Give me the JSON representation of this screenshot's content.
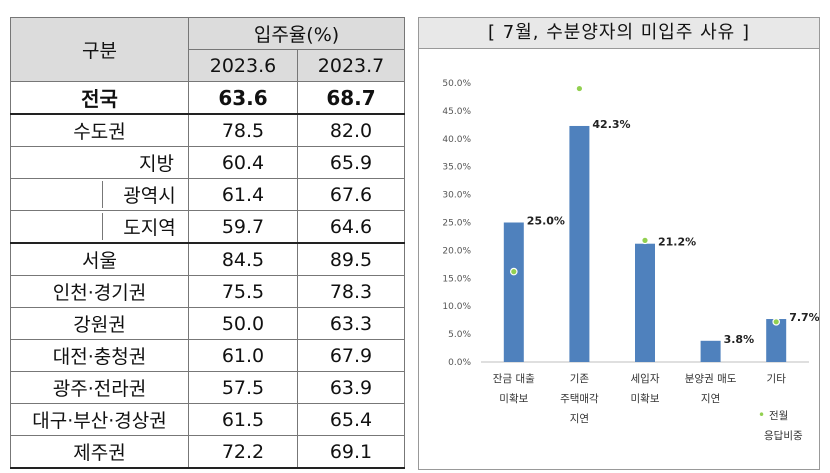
{
  "table": {
    "header": {
      "group_label": "구분",
      "rate_label": "입주율(%)",
      "col1": "2023.6",
      "col2": "2023.7"
    },
    "rows": [
      {
        "label": "전국",
        "v1": "63.6",
        "v2": "68.7"
      },
      {
        "label": "수도권",
        "v1": "78.5",
        "v2": "82.0"
      },
      {
        "label": "지방",
        "v1": "60.4",
        "v2": "65.9"
      },
      {
        "label": "광역시",
        "v1": "61.4",
        "v2": "67.6"
      },
      {
        "label": "도지역",
        "v1": "59.7",
        "v2": "64.6"
      },
      {
        "label": "서울",
        "v1": "84.5",
        "v2": "89.5"
      },
      {
        "label": "인천·경기권",
        "v1": "75.5",
        "v2": "78.3"
      },
      {
        "label": "강원권",
        "v1": "50.0",
        "v2": "63.3"
      },
      {
        "label": "대전·충청권",
        "v1": "61.0",
        "v2": "67.9"
      },
      {
        "label": "광주·전라권",
        "v1": "57.5",
        "v2": "63.9"
      },
      {
        "label": "대구·부산·경상권",
        "v1": "61.5",
        "v2": "65.4"
      },
      {
        "label": "제주권",
        "v1": "72.2",
        "v2": "69.1"
      }
    ]
  },
  "chart_data": {
    "type": "bar",
    "title": "[ 7월, 수분양자의 미입주 사유 ]",
    "categories": [
      [
        "잔금 대출",
        "미확보"
      ],
      [
        "기존",
        "주택매각",
        "지연"
      ],
      [
        "세입자",
        "미확보"
      ],
      [
        "분양권 매도",
        "지연"
      ],
      [
        "기타"
      ]
    ],
    "series": [
      {
        "name": "7월",
        "values": [
          25.0,
          42.3,
          21.2,
          3.8,
          7.7
        ],
        "labels": [
          "25.0%",
          "42.3%",
          "21.2%",
          "3.8%",
          "7.7%"
        ],
        "color": "#4f81bd"
      },
      {
        "name": "전월 응답비중",
        "values": [
          16.2,
          49.0,
          21.8,
          null,
          7.2
        ],
        "color": "#92d050"
      }
    ],
    "yticks": [
      "0.0%",
      "5.0%",
      "10.0%",
      "15.0%",
      "20.0%",
      "25.0%",
      "30.0%",
      "35.0%",
      "40.0%",
      "45.0%",
      "50.0%"
    ],
    "ylim": [
      0,
      50
    ],
    "legend": {
      "marker": "•",
      "line1": "전월",
      "line2": "응답비중"
    }
  }
}
